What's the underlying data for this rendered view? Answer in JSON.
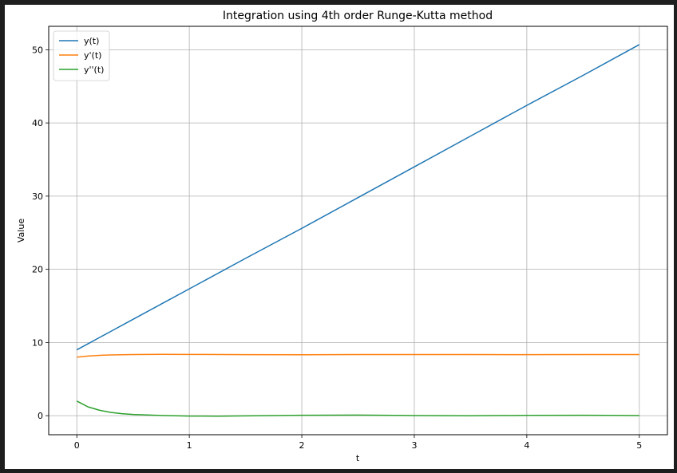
{
  "chart_data": {
    "type": "line",
    "title": "Integration using 4th order Runge-Kutta method",
    "xlabel": "t",
    "ylabel": "Value",
    "xlim": [
      -0.25,
      5.25
    ],
    "ylim": [
      -2.6,
      53.2
    ],
    "xticks": [
      0,
      1,
      2,
      3,
      4,
      5
    ],
    "yticks": [
      0,
      10,
      20,
      30,
      40,
      50
    ],
    "grid": true,
    "legend_position": "top-left",
    "series": [
      {
        "name": "y(t)",
        "color": "#1f77b4",
        "x": [
          0,
          0.1,
          0.2,
          0.3,
          0.5,
          0.75,
          1.0,
          1.5,
          2.0,
          2.5,
          3.0,
          3.5,
          4.0,
          4.5,
          5.0
        ],
        "y": [
          9.0,
          9.83,
          10.67,
          11.5,
          13.17,
          15.25,
          17.33,
          21.5,
          25.6,
          29.8,
          34.0,
          38.2,
          42.4,
          46.5,
          50.7
        ]
      },
      {
        "name": "y'(t)",
        "color": "#ff7f0e",
        "x": [
          0,
          0.1,
          0.2,
          0.3,
          0.5,
          0.75,
          1.0,
          1.5,
          2.0,
          2.5,
          3.0,
          3.5,
          4.0,
          4.5,
          5.0
        ],
        "y": [
          8.0,
          8.15,
          8.25,
          8.3,
          8.36,
          8.38,
          8.37,
          8.34,
          8.33,
          8.35,
          8.36,
          8.35,
          8.34,
          8.35,
          8.35
        ]
      },
      {
        "name": "y''(t)",
        "color": "#2ca02c",
        "x": [
          0,
          0.1,
          0.2,
          0.3,
          0.4,
          0.5,
          0.75,
          1.0,
          1.25,
          1.5,
          2.0,
          2.5,
          3.0,
          3.5,
          4.0,
          4.5,
          5.0
        ],
        "y": [
          2.0,
          1.2,
          0.75,
          0.45,
          0.28,
          0.17,
          0.03,
          -0.05,
          -0.06,
          -0.03,
          0.06,
          0.08,
          0.02,
          -0.01,
          0.04,
          0.06,
          0.01
        ]
      }
    ]
  }
}
